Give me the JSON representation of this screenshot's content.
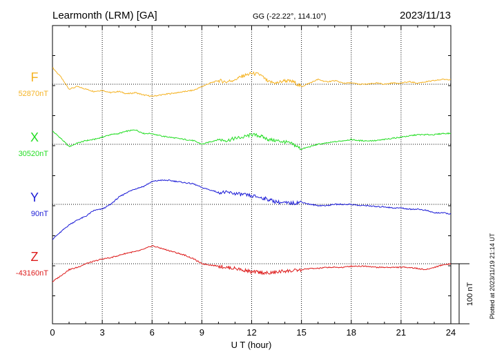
{
  "header": {
    "station": "Learmonth (LRM)  [GA]",
    "coords": "GG (-22.22°, 114.10°)",
    "date": "2023/11/13"
  },
  "footer_note": "Plotted at 2023/11/19 21:14 UT",
  "scale_bar_label": "100 nT",
  "chart_data": {
    "type": "line",
    "xlabel": "U T (hour)",
    "xlim": [
      0,
      24
    ],
    "xticks": [
      "0",
      "3",
      "6",
      "9",
      "12",
      "15",
      "18",
      "21",
      "24"
    ],
    "scale_nT_per_division": 100,
    "grid": true,
    "series": [
      {
        "name": "F",
        "baseline_label": "52870nT",
        "color": "#f5b324",
        "x": [
          0,
          0.5,
          1,
          1.5,
          2,
          2.5,
          3,
          3.5,
          4,
          4.5,
          5,
          5.5,
          6,
          6.5,
          7,
          7.5,
          8,
          8.5,
          9,
          9.5,
          10,
          10.5,
          11,
          11.5,
          12,
          12.5,
          13,
          13.5,
          14,
          14.5,
          15,
          15.5,
          16,
          16.5,
          17,
          17.5,
          18,
          18.5,
          19,
          19.5,
          20,
          20.5,
          21,
          21.5,
          22,
          22.5,
          23,
          23.5,
          24
        ],
        "values": [
          28,
          12,
          -8,
          -4,
          -8,
          -12,
          -10,
          -14,
          -12,
          -16,
          -14,
          -18,
          -20,
          -18,
          -16,
          -14,
          -12,
          -10,
          -4,
          2,
          6,
          4,
          8,
          14,
          18,
          16,
          4,
          2,
          6,
          4,
          -4,
          2,
          8,
          4,
          6,
          2,
          2,
          0,
          0,
          2,
          0,
          2,
          2,
          4,
          2,
          4,
          6,
          8,
          8
        ]
      },
      {
        "name": "X",
        "baseline_label": "30520nT",
        "color": "#22dd22",
        "x": [
          0,
          0.5,
          1,
          1.5,
          2,
          2.5,
          3,
          3.5,
          4,
          4.5,
          5,
          5.5,
          6,
          6.5,
          7,
          7.5,
          8,
          8.5,
          9,
          9.5,
          10,
          10.5,
          11,
          11.5,
          12,
          12.5,
          13,
          13.5,
          14,
          14.5,
          15,
          15.5,
          16,
          16.5,
          17,
          17.5,
          18,
          18.5,
          19,
          19.5,
          20,
          20.5,
          21,
          21.5,
          22,
          22.5,
          23,
          23.5,
          24
        ],
        "values": [
          22,
          10,
          -4,
          2,
          6,
          8,
          12,
          16,
          18,
          22,
          24,
          18,
          18,
          14,
          12,
          10,
          8,
          6,
          0,
          4,
          8,
          6,
          10,
          12,
          16,
          14,
          8,
          6,
          4,
          0,
          -8,
          -4,
          0,
          2,
          4,
          6,
          8,
          6,
          6,
          6,
          8,
          10,
          12,
          14,
          16,
          16,
          16,
          18,
          18
        ]
      },
      {
        "name": "Y",
        "baseline_label": "90nT",
        "color": "#1a1ad6",
        "x": [
          0,
          0.5,
          1,
          1.5,
          2,
          2.5,
          3,
          3.5,
          4,
          4.5,
          5,
          5.5,
          6,
          6.5,
          7,
          7.5,
          8,
          8.5,
          9,
          9.5,
          10,
          10.5,
          11,
          11.5,
          12,
          12.5,
          13,
          13.5,
          14,
          14.5,
          15,
          15.5,
          16,
          16.5,
          17,
          17.5,
          18,
          18.5,
          19,
          19.5,
          20,
          20.5,
          21,
          21.5,
          22,
          22.5,
          23,
          23.5,
          24
        ],
        "values": [
          -58,
          -46,
          -34,
          -26,
          -20,
          -10,
          -8,
          0,
          12,
          20,
          26,
          30,
          38,
          40,
          40,
          38,
          36,
          34,
          28,
          24,
          20,
          20,
          18,
          16,
          14,
          12,
          8,
          4,
          2,
          2,
          4,
          0,
          -2,
          -2,
          0,
          0,
          0,
          -2,
          -2,
          -4,
          -4,
          -6,
          -6,
          -8,
          -8,
          -10,
          -14,
          -14,
          -16
        ]
      },
      {
        "name": "Z",
        "baseline_label": "-43160nT",
        "color": "#dd1a1a",
        "x": [
          0,
          0.5,
          1,
          1.5,
          2,
          2.5,
          3,
          3.5,
          4,
          4.5,
          5,
          5.5,
          6,
          6.5,
          7,
          7.5,
          8,
          8.5,
          9,
          9.5,
          10,
          10.5,
          11,
          11.5,
          12,
          12.5,
          13,
          13.5,
          14,
          14.5,
          15,
          15.5,
          16,
          16.5,
          17,
          17.5,
          18,
          18.5,
          19,
          19.5,
          20,
          20.5,
          21,
          21.5,
          22,
          22.5,
          23,
          23.5,
          24
        ],
        "values": [
          -30,
          -20,
          -10,
          -6,
          0,
          4,
          8,
          10,
          14,
          18,
          20,
          24,
          30,
          26,
          22,
          18,
          14,
          8,
          0,
          -2,
          -4,
          -6,
          -8,
          -10,
          -14,
          -14,
          -16,
          -14,
          -12,
          -12,
          -10,
          -8,
          -8,
          -6,
          -6,
          -6,
          -4,
          -4,
          -4,
          -6,
          -6,
          -6,
          -6,
          -6,
          -8,
          -10,
          -6,
          -2,
          0
        ]
      }
    ]
  }
}
